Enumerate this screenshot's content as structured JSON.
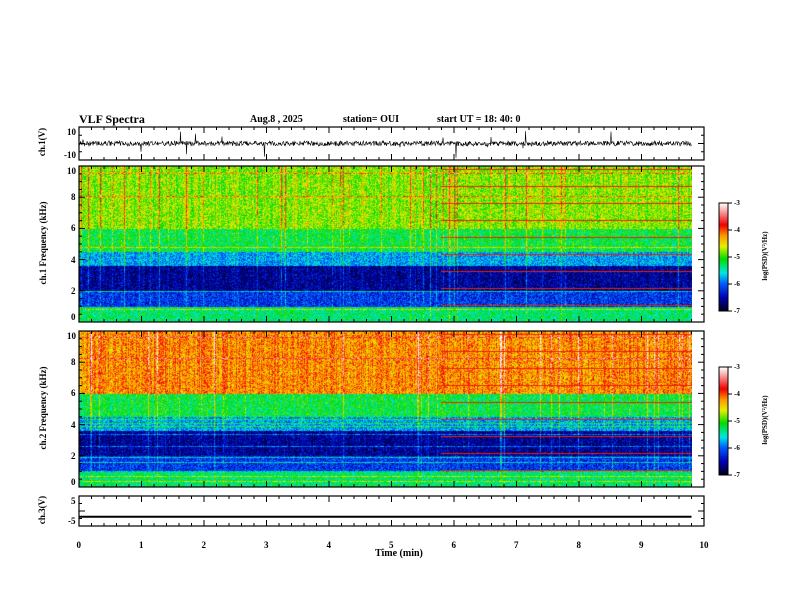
{
  "header": {
    "title": "VLF Spectra",
    "date": "Aug.8 , 2025",
    "station": "station= OUI",
    "start": "start UT = 18: 40: 0"
  },
  "xaxis": {
    "label": "Time (min)",
    "range": [
      0,
      10
    ],
    "ticks": [
      "0",
      "1",
      "2",
      "3",
      "4",
      "5",
      "6",
      "7",
      "8",
      "9",
      "10"
    ],
    "data_end": 9.8
  },
  "chart_data": [
    {
      "type": "line",
      "name": "ch1 waveform",
      "ylabel": "ch.1(V)",
      "ylim": [
        -10,
        10
      ],
      "yticks": [
        "10",
        "-10"
      ],
      "baseline": 0
    },
    {
      "type": "heatmap",
      "name": "ch1 spectrogram",
      "ylabel": "ch.1 Frequency (kHz)",
      "ylim": [
        0,
        10
      ],
      "yticks": [
        "0",
        "2",
        "4",
        "6",
        "8",
        "10"
      ],
      "colorbar": {
        "label": "log(PSD)(V²/Hz)",
        "range": [
          -7,
          -3
        ],
        "ticks": [
          "-3",
          "-4",
          "-5",
          "-6",
          "-7"
        ]
      }
    },
    {
      "type": "heatmap",
      "name": "ch2 spectrogram",
      "ylabel": "ch.2 Frequency (kHz)",
      "ylim": [
        0,
        10
      ],
      "yticks": [
        "0",
        "2",
        "4",
        "6",
        "8",
        "10"
      ],
      "colorbar": {
        "label": "log(PSD)(V²/Hz)",
        "range": [
          -7,
          -3
        ],
        "ticks": [
          "-3",
          "-4",
          "-5",
          "-6",
          "-7"
        ]
      }
    },
    {
      "type": "line",
      "name": "ch3 waveform",
      "ylabel": "ch.3(V)",
      "ylim": [
        -5,
        5
      ],
      "yticks": [
        "5",
        "-5"
      ],
      "baseline": -1.9
    }
  ]
}
